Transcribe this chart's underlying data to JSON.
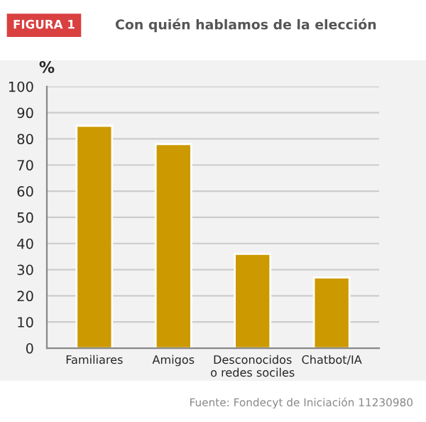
{
  "chart_data": {
    "type": "bar",
    "title": "Con quién hablamos de la elección",
    "ylabel": "%",
    "categories": [
      "Familiares",
      "Amigos",
      "Desconocidos\no redes sociles",
      "Chatbot/IA"
    ],
    "values": [
      85,
      78,
      36,
      27
    ],
    "color": "#cc9900",
    "ylim": [
      0,
      100
    ],
    "yticks": [
      0,
      10,
      20,
      30,
      40,
      50,
      60,
      70,
      80,
      90,
      100
    ],
    "grid": "y",
    "annotations": [
      "FIGURA 1",
      "Fuente: Fondecyt de Iniciación 11230980"
    ]
  }
}
